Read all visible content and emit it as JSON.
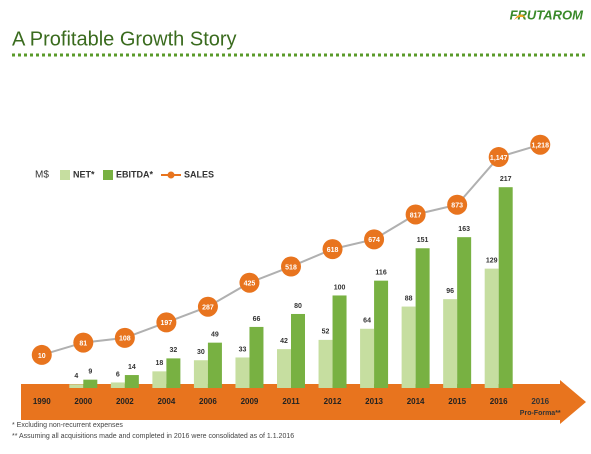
{
  "header": {
    "title": "A Profitable Growth Story",
    "logo": "FRUTAROM"
  },
  "chart_data": {
    "type": "bar-line",
    "unit_label": "M$",
    "categories": [
      "1990",
      "2000",
      "2002",
      "2004",
      "2006",
      "2009",
      "2011",
      "2012",
      "2013",
      "2014",
      "2015",
      "2016",
      "2016"
    ],
    "last_category_note": "Pro-Forma**",
    "series": [
      {
        "name": "NET*",
        "color": "#c6dea0",
        "values": [
          null,
          4,
          6,
          18,
          30,
          33,
          42,
          52,
          64,
          88,
          96,
          129,
          null
        ]
      },
      {
        "name": "EBITDA*",
        "color": "#78b142",
        "values": [
          null,
          9,
          14,
          32,
          49,
          66,
          80,
          100,
          116,
          151,
          163,
          217,
          null
        ]
      },
      {
        "name": "SALES",
        "color": "#e8741e",
        "axis": "y2",
        "values": [
          10,
          81,
          108,
          197,
          287,
          425,
          518,
          618,
          674,
          817,
          873,
          1147,
          1218
        ],
        "value_labels": [
          "10",
          "81",
          "108",
          "197",
          "287",
          "425",
          "518",
          "618",
          "674",
          "817",
          "873",
          "1,147",
          "1,218"
        ]
      }
    ],
    "ylim": [
      0,
      268
    ],
    "y2lim": [
      -180,
      1245
    ]
  },
  "footnotes": [
    "*   Excluding non-recurrent expenses",
    "** Assuming all acquisitions made and completed in 2016 were consolidated as of 1.1.2016"
  ]
}
